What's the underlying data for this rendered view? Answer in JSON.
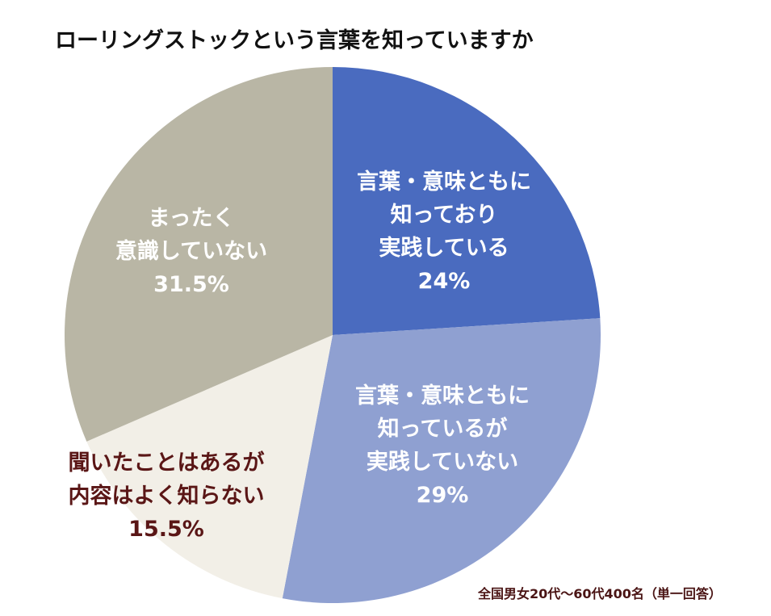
{
  "chart_data": {
    "type": "pie",
    "title": "ローリングストックという言葉を知っていますか",
    "start": "12 o'clock, clockwise",
    "slices": [
      {
        "label": "言葉・意味ともに\n知っており\n実践している",
        "value": 24,
        "value_label": "24%",
        "color": "#4a6bbf",
        "text_color": "#ffffff"
      },
      {
        "label": "言葉・意味ともに\n知っているが\n実践していない",
        "value": 29,
        "value_label": "29%",
        "color": "#8fa0d1",
        "text_color": "#ffffff"
      },
      {
        "label": "聞いたことはあるが\n内容はよく知らない",
        "value": 15.5,
        "value_label": "15.5%",
        "color": "#f2efe7",
        "text_color": "#5a1616"
      },
      {
        "label": "まったく\n意識していない",
        "value": 31.5,
        "value_label": "31.5%",
        "color": "#b9b6a5",
        "text_color": "#ffffff"
      }
    ],
    "note": "全国男女20代～60代400名（単一回答）"
  }
}
